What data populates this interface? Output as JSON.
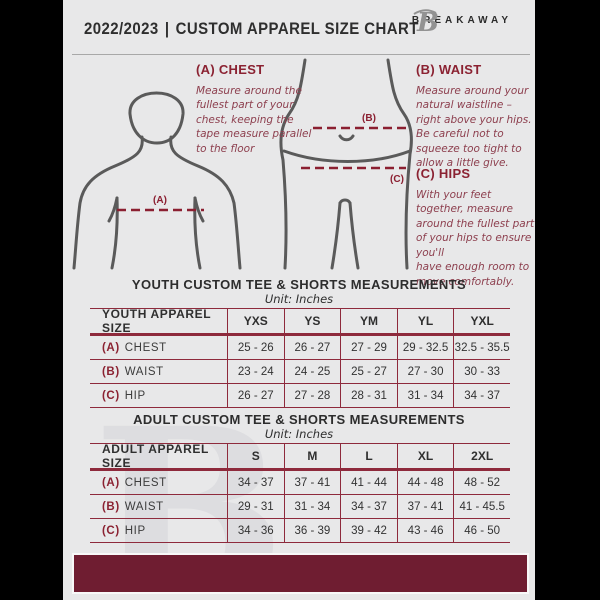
{
  "header": {
    "year": "2022/2023",
    "separator": "|",
    "title": "CUSTOM APPAREL SIZE CHART",
    "brand": "BREAKAWAY",
    "logo_icon": "breakaway-b-monogram"
  },
  "measure_guide": {
    "chest": {
      "heading": "(A) CHEST",
      "marker": "(A)",
      "body": "Measure around the\nfullest part of your\nchest, keeping the\ntape measure parallel\nto the floor"
    },
    "waist": {
      "heading": "(B) WAIST",
      "marker": "(B)",
      "body": "Measure around your\nnatural waistline –\nright above your hips.\nBe careful not to\nsqueeze too tight to\nallow a little give."
    },
    "hips": {
      "heading": "(C) HIPS",
      "marker": "(C)",
      "body": "With your feet\ntogether, measure\naround the fullest part\nof your hips to ensure\nyou'll\nhave enough room to\nmove comfortably."
    }
  },
  "tables": {
    "youth": {
      "title": "YOUTH CUSTOM TEE & SHORTS MEASUREMENTS",
      "unit": "Unit: Inches",
      "header": [
        "YOUTH APPAREL SIZE",
        "YXS",
        "YS",
        "YM",
        "YL",
        "YXL"
      ],
      "rows": [
        {
          "prefix": "(A)",
          "label": "CHEST",
          "values": [
            "25 - 26",
            "26 - 27",
            "27 - 29",
            "29 - 32.5",
            "32.5 - 35.5"
          ]
        },
        {
          "prefix": "(B)",
          "label": "WAIST",
          "values": [
            "23 - 24",
            "24 - 25",
            "25 - 27",
            "27 - 30",
            "30 - 33"
          ]
        },
        {
          "prefix": "(C)",
          "label": "HIP",
          "values": [
            "26 - 27",
            "27 - 28",
            "28 - 31",
            "31 - 34",
            "34 - 37"
          ]
        }
      ]
    },
    "adult": {
      "title": "ADULT CUSTOM TEE & SHORTS MEASUREMENTS",
      "unit": "Unit: Inches",
      "header": [
        "ADULT APPAREL SIZE",
        "S",
        "M",
        "L",
        "XL",
        "2XL"
      ],
      "rows": [
        {
          "prefix": "(A)",
          "label": "CHEST",
          "values": [
            "34 - 37",
            "37 - 41",
            "41 - 44",
            "44 - 48",
            "48 - 52"
          ]
        },
        {
          "prefix": "(B)",
          "label": "WAIST",
          "values": [
            "29 - 31",
            "31 - 34",
            "34 - 37",
            "37 - 41",
            "41 - 45.5"
          ]
        },
        {
          "prefix": "(C)",
          "label": "HIP",
          "values": [
            "34 - 36",
            "36 - 39",
            "39 - 42",
            "43 - 46",
            "46 - 50"
          ]
        }
      ]
    }
  },
  "watermark_letter": "B",
  "colors": {
    "maroon_heading": "#8b2232",
    "maroon_line": "#8b1f31",
    "table_border": "#8e2a3c",
    "footer_bar": "#6f1d31",
    "content_background": "#e8e8e9",
    "body_outline": "#5a5a5a",
    "side_bars": "#000000"
  }
}
